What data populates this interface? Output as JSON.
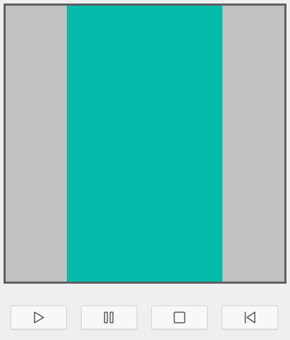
{
  "player": {
    "colors": {
      "frame_border": "#5f5f5f",
      "letterbox": "#c1c1c1",
      "video_content": "#05bba9",
      "button_bg": "#f8f8f8",
      "icon": "#555555"
    },
    "controls": [
      {
        "id": "play",
        "icon": "play-icon"
      },
      {
        "id": "pause",
        "icon": "pause-icon"
      },
      {
        "id": "stop",
        "icon": "stop-icon"
      },
      {
        "id": "rewind",
        "icon": "skip-to-start-icon"
      }
    ]
  }
}
